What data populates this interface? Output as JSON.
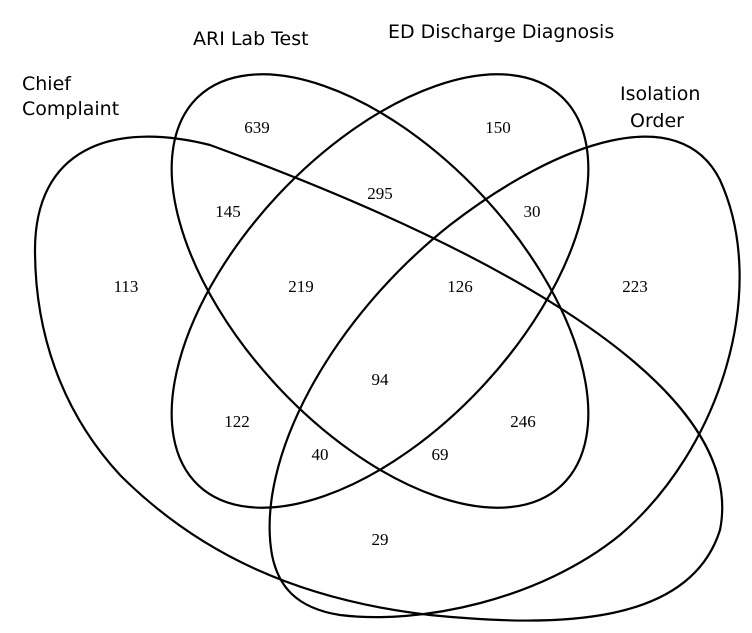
{
  "sets": [
    {
      "key": "cc",
      "lines": [
        "Chief",
        "Complaint"
      ]
    },
    {
      "key": "lab",
      "lines": [
        "ARI Lab Test"
      ]
    },
    {
      "key": "ed",
      "lines": [
        "ED Discharge Diagnosis"
      ]
    },
    {
      "key": "iso",
      "lines": [
        "Isolation",
        "Order"
      ]
    }
  ],
  "regions": [
    {
      "id": "cc-only",
      "members": [
        "cc"
      ],
      "value": "113"
    },
    {
      "id": "lab-only",
      "members": [
        "lab"
      ],
      "value": "639"
    },
    {
      "id": "ed-only",
      "members": [
        "ed"
      ],
      "value": "150"
    },
    {
      "id": "iso-only",
      "members": [
        "iso"
      ],
      "value": "223"
    },
    {
      "id": "cc-lab",
      "members": [
        "cc",
        "lab"
      ],
      "value": "145"
    },
    {
      "id": "lab-ed",
      "members": [
        "lab",
        "ed"
      ],
      "value": "295"
    },
    {
      "id": "ed-iso",
      "members": [
        "ed",
        "iso"
      ],
      "value": "30"
    },
    {
      "id": "cc-lab-ed",
      "members": [
        "cc",
        "lab",
        "ed"
      ],
      "value": "219"
    },
    {
      "id": "lab-ed-iso",
      "members": [
        "lab",
        "ed",
        "iso"
      ],
      "value": "126"
    },
    {
      "id": "all-four",
      "members": [
        "cc",
        "lab",
        "ed",
        "iso"
      ],
      "value": "94"
    },
    {
      "id": "cc-ed",
      "members": [
        "cc",
        "ed"
      ],
      "value": "122"
    },
    {
      "id": "lab-iso",
      "members": [
        "lab",
        "iso"
      ],
      "value": "246"
    },
    {
      "id": "cc-ed-iso",
      "members": [
        "cc",
        "ed",
        "iso"
      ],
      "value": "40"
    },
    {
      "id": "cc-lab-iso",
      "members": [
        "cc",
        "lab",
        "iso"
      ],
      "value": "69"
    },
    {
      "id": "cc-iso",
      "members": [
        "cc",
        "iso"
      ],
      "value": "29"
    }
  ]
}
